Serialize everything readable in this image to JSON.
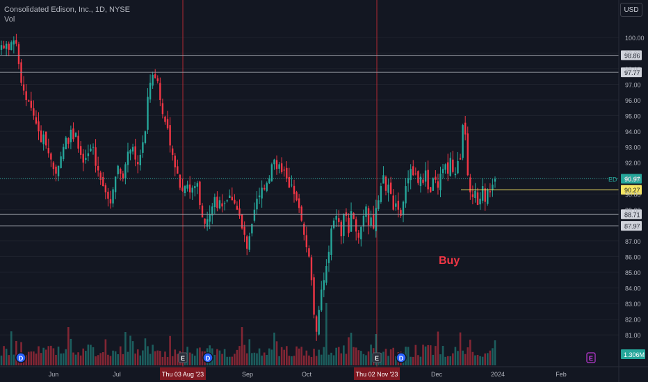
{
  "header": {
    "title": "Consolidated Edison, Inc., 1D, NYSE",
    "vol_label": "Vol",
    "currency_button": "USD"
  },
  "annotations": {
    "buy_text": "Buy"
  },
  "colors": {
    "up": "#26a69a",
    "down": "#f23645",
    "background": "#131722",
    "grid": "#1e222d",
    "hline": "#9598a1",
    "vline": "#b22833",
    "yellow": "#f5e663"
  },
  "chart_data": {
    "type": "candlestick",
    "title": "Consolidated Edison, Inc., 1D, NYSE",
    "ylim": [
      80.3,
      101.5
    ],
    "price_ticks": [
      "100.00",
      "99.00",
      "98.00",
      "97.00",
      "96.00",
      "95.00",
      "94.00",
      "93.00",
      "92.00",
      "91.00",
      "90.00",
      "89.00",
      "88.00",
      "87.00",
      "86.00",
      "85.00",
      "84.00",
      "83.00",
      "82.00",
      "81.00"
    ],
    "x_ticks": [
      "Jun",
      "Jul",
      "Thu 03 Aug '23",
      "Sep",
      "Oct",
      "Thu 02 Nov '23",
      "Dec",
      "2024",
      "Feb"
    ],
    "price_tags": [
      {
        "label": "98.86",
        "value": 98.86,
        "style": "line"
      },
      {
        "label": "97.77",
        "value": 97.77,
        "style": "line"
      },
      {
        "label": "90.97",
        "value": 90.97,
        "style": "last",
        "prefix": "ED"
      },
      {
        "label": "90.27",
        "value": 90.27,
        "style": "yellow"
      },
      {
        "label": "88.71",
        "value": 88.71,
        "style": "line"
      },
      {
        "label": "87.97",
        "value": 87.97,
        "style": "line"
      }
    ],
    "volume_tag": "1.306M",
    "vertical_markers": [
      "Thu 03 Aug '23",
      "Thu 02 Nov '23"
    ],
    "events": [
      "D",
      "E",
      "D",
      "E",
      "D",
      "E"
    ],
    "candles_close": [
      99.5,
      99.3,
      99.6,
      99.2,
      99.7,
      99.8,
      99.6,
      98.3,
      97.1,
      96.6,
      96.0,
      95.9,
      95.5,
      95.0,
      94.5,
      94.0,
      93.3,
      93.8,
      93.1,
      92.6,
      92.2,
      91.6,
      91.3,
      91.8,
      92.4,
      93.0,
      93.6,
      93.2,
      94.1,
      93.5,
      93.9,
      92.9,
      92.5,
      92.0,
      92.3,
      92.6,
      92.9,
      93.0,
      91.8,
      91.5,
      90.9,
      90.5,
      90.1,
      89.7,
      89.4,
      90.3,
      91.1,
      91.8,
      91.3,
      91.0,
      91.9,
      92.7,
      92.8,
      93.0,
      92.2,
      91.9,
      92.5,
      93.3,
      94.0,
      96.2,
      97.1,
      97.6,
      97.4,
      97.2,
      96.0,
      95.1,
      94.6,
      94.2,
      93.1,
      92.5,
      91.7,
      91.3,
      90.4,
      90.2,
      90.5,
      90.6,
      90.1,
      90.4,
      90.5,
      90.7,
      89.3,
      88.5,
      88.1,
      88.4,
      88.7,
      89.2,
      89.8,
      89.1,
      89.6,
      89.2,
      89.4,
      89.6,
      89.9,
      89.6,
      89.4,
      89.0,
      88.6,
      87.8,
      87.4,
      86.5,
      87.3,
      88.1,
      89.0,
      89.7,
      89.9,
      90.4,
      90.3,
      90.7,
      91.0,
      91.9,
      92.2,
      91.6,
      91.9,
      91.4,
      91.5,
      91.0,
      90.4,
      90.6,
      90.0,
      89.6,
      89.1,
      88.3,
      87.4,
      86.6,
      86.0,
      84.5,
      82.3,
      81.2,
      82.6,
      83.9,
      84.5,
      85.4,
      86.3,
      87.8,
      88.3,
      88.6,
      88.2,
      87.3,
      88.7,
      88.6,
      87.5,
      88.9,
      88.4,
      87.6,
      87.2,
      87.9,
      88.6,
      89.2,
      88.0,
      88.5,
      87.8,
      89.1,
      89.6,
      90.5,
      91.2,
      90.2,
      90.6,
      90.0,
      89.0,
      89.4,
      89.0,
      88.6,
      89.5,
      90.5,
      91.0,
      91.6,
      91.2,
      91.3,
      90.7,
      91.1,
      90.7,
      91.5,
      90.3,
      90.1,
      91.0,
      90.9,
      90.4,
      91.3,
      91.6,
      91.9,
      91.3,
      92.3,
      91.4,
      91.3,
      92.1,
      92.2,
      94.4,
      93.8,
      91.2,
      90.1,
      89.8,
      90.2,
      89.3,
      89.7,
      90.5,
      89.5,
      90.3,
      90.1,
      90.6,
      90.97
    ]
  }
}
